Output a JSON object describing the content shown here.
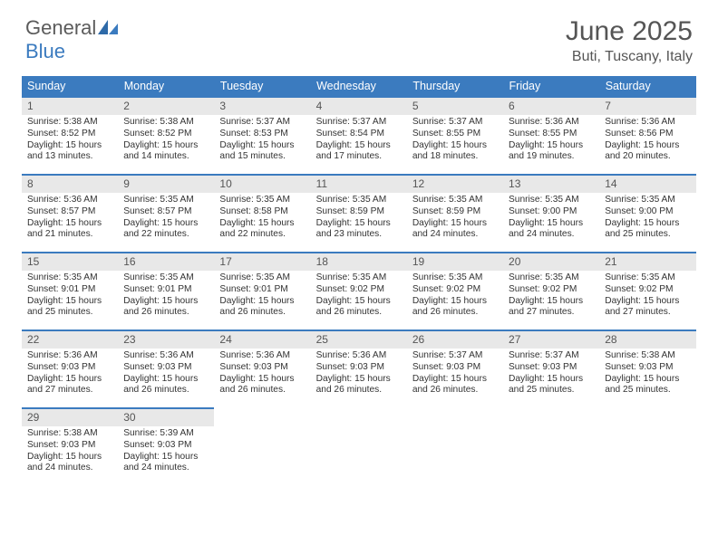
{
  "logo": {
    "general": "General",
    "blue": "Blue"
  },
  "title": "June 2025",
  "location": "Buti, Tuscany, Italy",
  "colors": {
    "header_bg": "#3b7bbf",
    "header_fg": "#ffffff",
    "daynum_bg": "#e8e8e8",
    "border": "#3b7bbf",
    "text": "#333333"
  },
  "weekdays": [
    "Sunday",
    "Monday",
    "Tuesday",
    "Wednesday",
    "Thursday",
    "Friday",
    "Saturday"
  ],
  "days": [
    {
      "n": 1,
      "sr": "5:38 AM",
      "ss": "8:52 PM",
      "dl": "15 hours and 13 minutes."
    },
    {
      "n": 2,
      "sr": "5:38 AM",
      "ss": "8:52 PM",
      "dl": "15 hours and 14 minutes."
    },
    {
      "n": 3,
      "sr": "5:37 AM",
      "ss": "8:53 PM",
      "dl": "15 hours and 15 minutes."
    },
    {
      "n": 4,
      "sr": "5:37 AM",
      "ss": "8:54 PM",
      "dl": "15 hours and 17 minutes."
    },
    {
      "n": 5,
      "sr": "5:37 AM",
      "ss": "8:55 PM",
      "dl": "15 hours and 18 minutes."
    },
    {
      "n": 6,
      "sr": "5:36 AM",
      "ss": "8:55 PM",
      "dl": "15 hours and 19 minutes."
    },
    {
      "n": 7,
      "sr": "5:36 AM",
      "ss": "8:56 PM",
      "dl": "15 hours and 20 minutes."
    },
    {
      "n": 8,
      "sr": "5:36 AM",
      "ss": "8:57 PM",
      "dl": "15 hours and 21 minutes."
    },
    {
      "n": 9,
      "sr": "5:35 AM",
      "ss": "8:57 PM",
      "dl": "15 hours and 22 minutes."
    },
    {
      "n": 10,
      "sr": "5:35 AM",
      "ss": "8:58 PM",
      "dl": "15 hours and 22 minutes."
    },
    {
      "n": 11,
      "sr": "5:35 AM",
      "ss": "8:59 PM",
      "dl": "15 hours and 23 minutes."
    },
    {
      "n": 12,
      "sr": "5:35 AM",
      "ss": "8:59 PM",
      "dl": "15 hours and 24 minutes."
    },
    {
      "n": 13,
      "sr": "5:35 AM",
      "ss": "9:00 PM",
      "dl": "15 hours and 24 minutes."
    },
    {
      "n": 14,
      "sr": "5:35 AM",
      "ss": "9:00 PM",
      "dl": "15 hours and 25 minutes."
    },
    {
      "n": 15,
      "sr": "5:35 AM",
      "ss": "9:01 PM",
      "dl": "15 hours and 25 minutes."
    },
    {
      "n": 16,
      "sr": "5:35 AM",
      "ss": "9:01 PM",
      "dl": "15 hours and 26 minutes."
    },
    {
      "n": 17,
      "sr": "5:35 AM",
      "ss": "9:01 PM",
      "dl": "15 hours and 26 minutes."
    },
    {
      "n": 18,
      "sr": "5:35 AM",
      "ss": "9:02 PM",
      "dl": "15 hours and 26 minutes."
    },
    {
      "n": 19,
      "sr": "5:35 AM",
      "ss": "9:02 PM",
      "dl": "15 hours and 26 minutes."
    },
    {
      "n": 20,
      "sr": "5:35 AM",
      "ss": "9:02 PM",
      "dl": "15 hours and 27 minutes."
    },
    {
      "n": 21,
      "sr": "5:35 AM",
      "ss": "9:02 PM",
      "dl": "15 hours and 27 minutes."
    },
    {
      "n": 22,
      "sr": "5:36 AM",
      "ss": "9:03 PM",
      "dl": "15 hours and 27 minutes."
    },
    {
      "n": 23,
      "sr": "5:36 AM",
      "ss": "9:03 PM",
      "dl": "15 hours and 26 minutes."
    },
    {
      "n": 24,
      "sr": "5:36 AM",
      "ss": "9:03 PM",
      "dl": "15 hours and 26 minutes."
    },
    {
      "n": 25,
      "sr": "5:36 AM",
      "ss": "9:03 PM",
      "dl": "15 hours and 26 minutes."
    },
    {
      "n": 26,
      "sr": "5:37 AM",
      "ss": "9:03 PM",
      "dl": "15 hours and 26 minutes."
    },
    {
      "n": 27,
      "sr": "5:37 AM",
      "ss": "9:03 PM",
      "dl": "15 hours and 25 minutes."
    },
    {
      "n": 28,
      "sr": "5:38 AM",
      "ss": "9:03 PM",
      "dl": "15 hours and 25 minutes."
    },
    {
      "n": 29,
      "sr": "5:38 AM",
      "ss": "9:03 PM",
      "dl": "15 hours and 24 minutes."
    },
    {
      "n": 30,
      "sr": "5:39 AM",
      "ss": "9:03 PM",
      "dl": "15 hours and 24 minutes."
    }
  ],
  "labels": {
    "sunrise": "Sunrise:",
    "sunset": "Sunset:",
    "daylight": "Daylight:"
  },
  "layout": {
    "start_weekday": 0,
    "rows": 5,
    "cols": 7
  }
}
